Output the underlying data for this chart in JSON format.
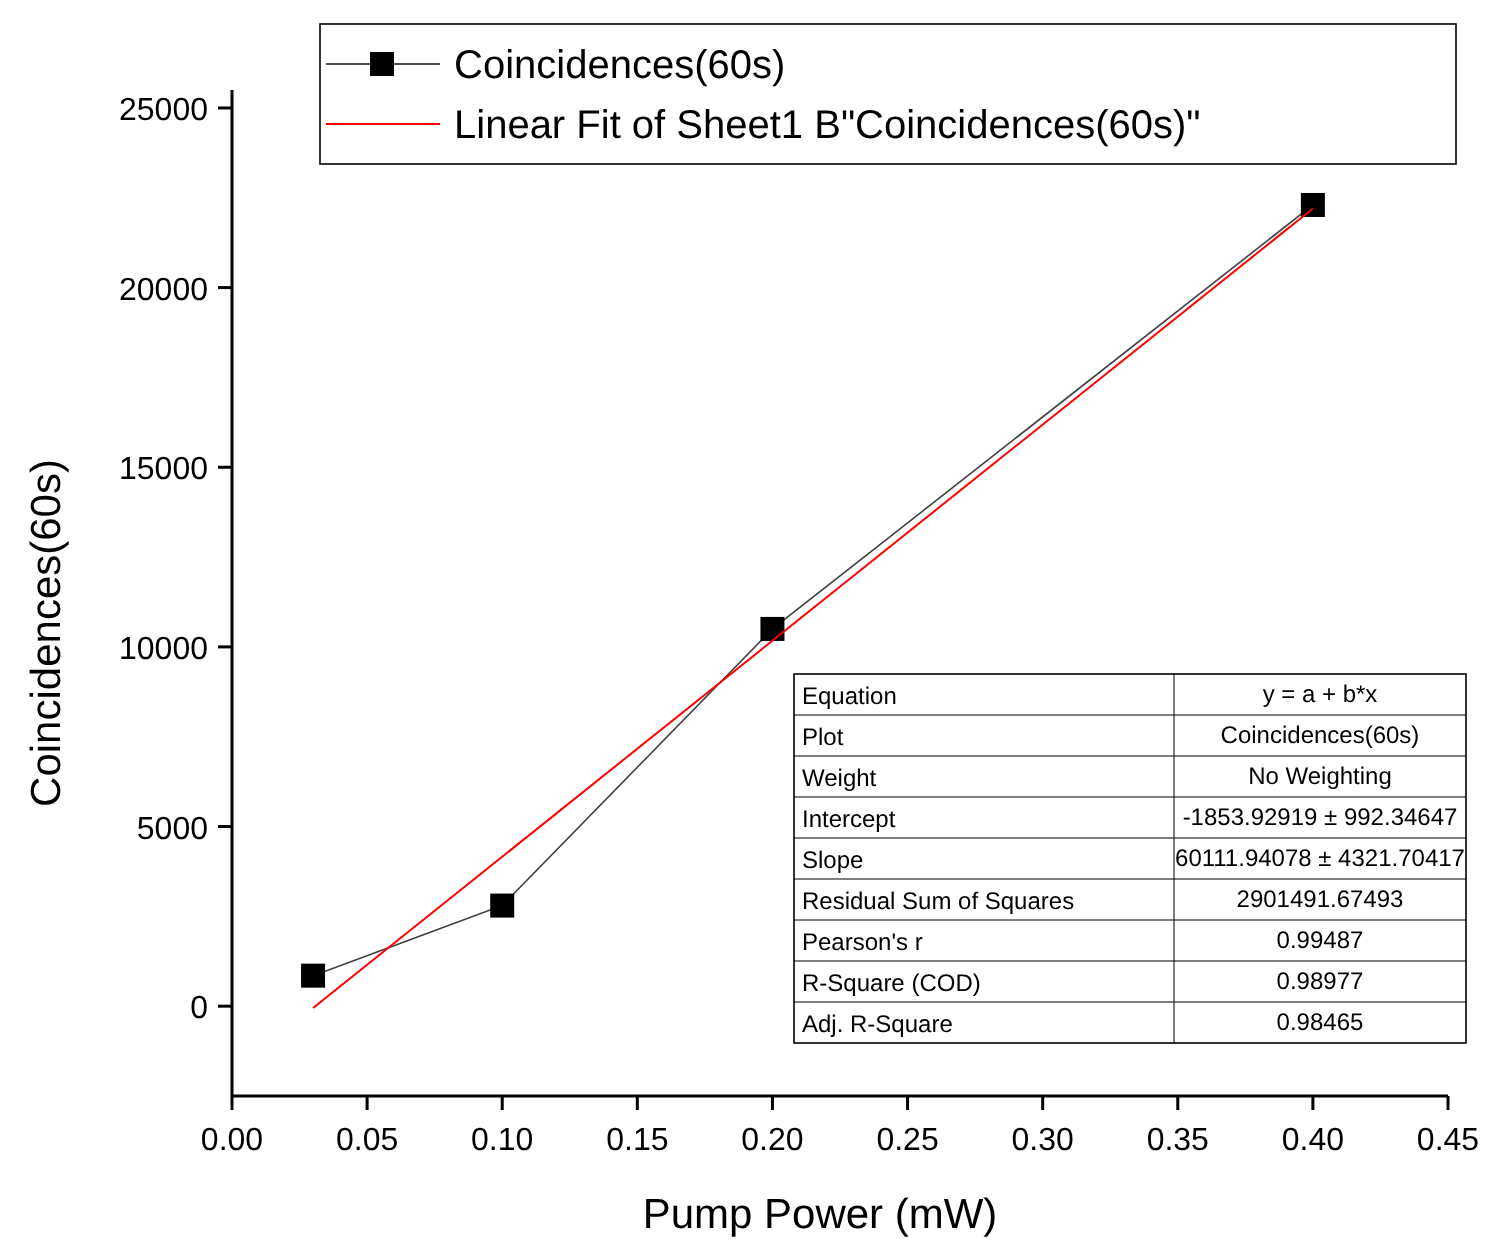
{
  "chart_data": {
    "type": "line",
    "xlabel": "Pump Power (mW)",
    "ylabel": "Coincidences(60s)",
    "x": [
      0.03,
      0.1,
      0.2,
      0.4
    ],
    "series": [
      {
        "name": "Coincidences(60s)",
        "color": "#000000",
        "values": [
          850,
          2800,
          10500,
          22300
        ],
        "marker": "square"
      },
      {
        "name": "Linear Fit of Sheet1 B\"Coincidences(60s)\"",
        "color": "#ff0000",
        "x": [
          0.03,
          0.4
        ],
        "values": [
          -50,
          22200
        ],
        "marker": "none"
      }
    ],
    "xlim": [
      0,
      0.45
    ],
    "xticks": [
      {
        "value": 0,
        "label": "0.00"
      },
      {
        "value": 0.05,
        "label": "0.05"
      },
      {
        "value": 0.1,
        "label": "0.10"
      },
      {
        "value": 0.15,
        "label": "0.15"
      },
      {
        "value": 0.2,
        "label": "0.20"
      },
      {
        "value": 0.25,
        "label": "0.25"
      },
      {
        "value": 0.3,
        "label": "0.30"
      },
      {
        "value": 0.35,
        "label": "0.35"
      },
      {
        "value": 0.4,
        "label": "0.40"
      },
      {
        "value": 0.45,
        "label": "0.45"
      }
    ],
    "ylim": [
      -2500,
      25500
    ],
    "yticks": [
      0,
      5000,
      10000,
      15000,
      20000,
      25000
    ],
    "grid": false,
    "legend": "top",
    "annotations": [
      "Equation",
      "y = a + b*x",
      "Plot",
      "Coincidences(60s)",
      "Weight",
      "No Weighting",
      "Intercept",
      "-1853.92919 ± 992.34647",
      "Slope",
      "60111.94078 ± 4321.70417",
      "Residual Sum of Squares",
      "2901491.67493",
      "Pearson's r",
      "0.99487",
      "R-Square (COD)",
      "0.98977",
      "Adj. R-Square",
      "0.98465"
    ]
  }
}
